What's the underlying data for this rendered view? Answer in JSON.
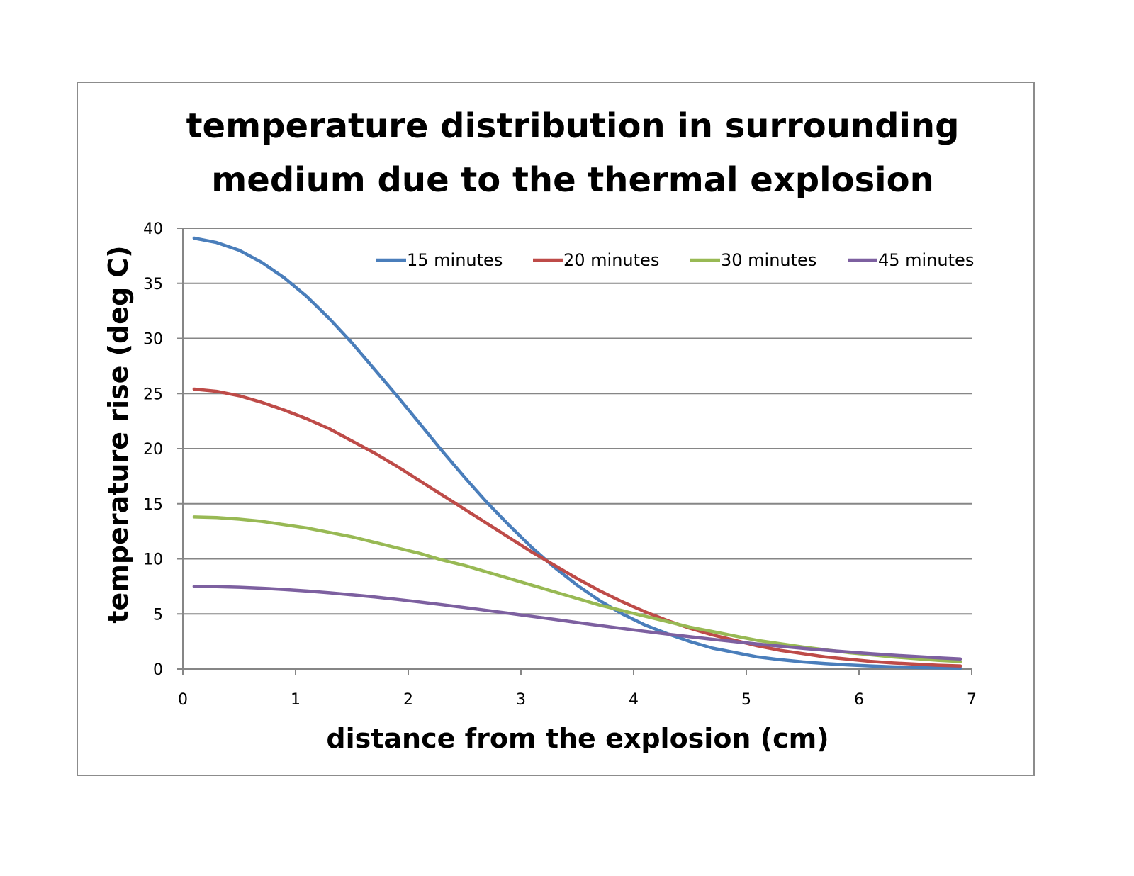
{
  "chart_data": {
    "type": "line",
    "title": "temperature distribution in surrounding medium due to the thermal explosion",
    "title_lines": [
      "temperature distribution in surrounding",
      "medium due to the thermal explosion"
    ],
    "xlabel": "distance from the explosion (cm)",
    "ylabel": "temperature rise (deg C)",
    "xlim": [
      0,
      7
    ],
    "ylim": [
      0,
      40
    ],
    "xticks": [
      0,
      1,
      2,
      3,
      4,
      5,
      6,
      7
    ],
    "yticks": [
      0,
      5,
      10,
      15,
      20,
      25,
      30,
      35,
      40
    ],
    "grid": "horizontal",
    "legend_position": "top-right inside",
    "x": [
      0.1,
      0.3,
      0.5,
      0.7,
      0.9,
      1.1,
      1.3,
      1.5,
      1.7,
      1.9,
      2.1,
      2.3,
      2.5,
      2.7,
      2.9,
      3.1,
      3.3,
      3.5,
      3.7,
      3.9,
      4.1,
      4.3,
      4.5,
      4.7,
      4.9,
      5.1,
      5.3,
      5.5,
      5.7,
      5.9,
      6.1,
      6.3,
      6.5,
      6.7,
      6.9
    ],
    "series": [
      {
        "name": "15 minutes",
        "color": "#4a7ebb",
        "values": [
          39.1,
          38.7,
          38.0,
          36.9,
          35.5,
          33.8,
          31.8,
          29.6,
          27.2,
          24.8,
          22.3,
          19.8,
          17.4,
          15.1,
          13.0,
          11.0,
          9.2,
          7.6,
          6.2,
          5.0,
          4.0,
          3.2,
          2.5,
          1.9,
          1.5,
          1.1,
          0.85,
          0.65,
          0.5,
          0.38,
          0.28,
          0.2,
          0.15,
          0.11,
          0.08
        ]
      },
      {
        "name": "20 minutes",
        "color": "#be4b48",
        "values": [
          25.4,
          25.2,
          24.8,
          24.2,
          23.5,
          22.7,
          21.8,
          20.7,
          19.6,
          18.4,
          17.1,
          15.8,
          14.5,
          13.2,
          11.9,
          10.6,
          9.4,
          8.2,
          7.1,
          6.1,
          5.2,
          4.4,
          3.7,
          3.1,
          2.6,
          2.1,
          1.7,
          1.4,
          1.1,
          0.9,
          0.7,
          0.55,
          0.45,
          0.35,
          0.28
        ]
      },
      {
        "name": "30 minutes",
        "color": "#98b954",
        "values": [
          13.8,
          13.75,
          13.6,
          13.4,
          13.1,
          12.8,
          12.4,
          12.0,
          11.5,
          11.0,
          10.5,
          9.9,
          9.4,
          8.8,
          8.2,
          7.6,
          7.0,
          6.4,
          5.8,
          5.3,
          4.8,
          4.3,
          3.8,
          3.4,
          3.0,
          2.6,
          2.3,
          2.0,
          1.75,
          1.5,
          1.3,
          1.1,
          0.95,
          0.8,
          0.68
        ]
      },
      {
        "name": "45 minutes",
        "color": "#7d60a0",
        "values": [
          7.5,
          7.48,
          7.42,
          7.33,
          7.22,
          7.08,
          6.92,
          6.74,
          6.54,
          6.32,
          6.09,
          5.84,
          5.58,
          5.32,
          5.05,
          4.77,
          4.5,
          4.22,
          3.95,
          3.68,
          3.42,
          3.17,
          2.93,
          2.7,
          2.48,
          2.27,
          2.07,
          1.88,
          1.71,
          1.55,
          1.4,
          1.26,
          1.14,
          1.02,
          0.92
        ]
      }
    ]
  }
}
